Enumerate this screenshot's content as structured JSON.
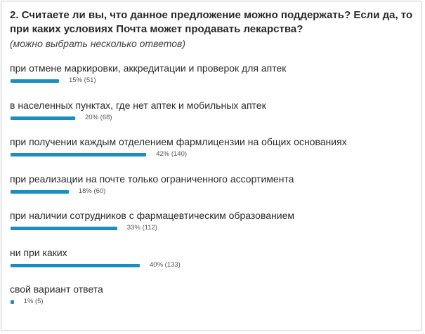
{
  "question": {
    "title": "2. Считаете ли вы, что данное предложение можно поддержать? Если да, то при каких условиях Почта может продавать лекарства?",
    "note": "(можно выбрать несколько ответов)"
  },
  "colors": {
    "bar": "#1a8ec0",
    "border": "#c9c9c9"
  },
  "chart_data": {
    "type": "bar",
    "orientation": "horizontal",
    "categories": [
      "при отмене маркировки, аккредитации и проверок для аптек",
      "в населенных пунктах, где нет аптек и мобильных аптек",
      "при получении каждым отделением фармлицензии на общих основаниях",
      "при реализации на почте только ограниченного ассортимента",
      "при наличии сотрудников с фармацевтическим образованием",
      "ни при каких",
      "свой вариант ответа"
    ],
    "percent": [
      15,
      20,
      42,
      18,
      33,
      40,
      1
    ],
    "counts": [
      51,
      68,
      140,
      60,
      112,
      133,
      5
    ],
    "value_labels": [
      "15% (51)",
      "20% (68)",
      "42% (140)",
      "18% (60)",
      "33% (112)",
      "40% (133)",
      "1% (5)"
    ]
  }
}
